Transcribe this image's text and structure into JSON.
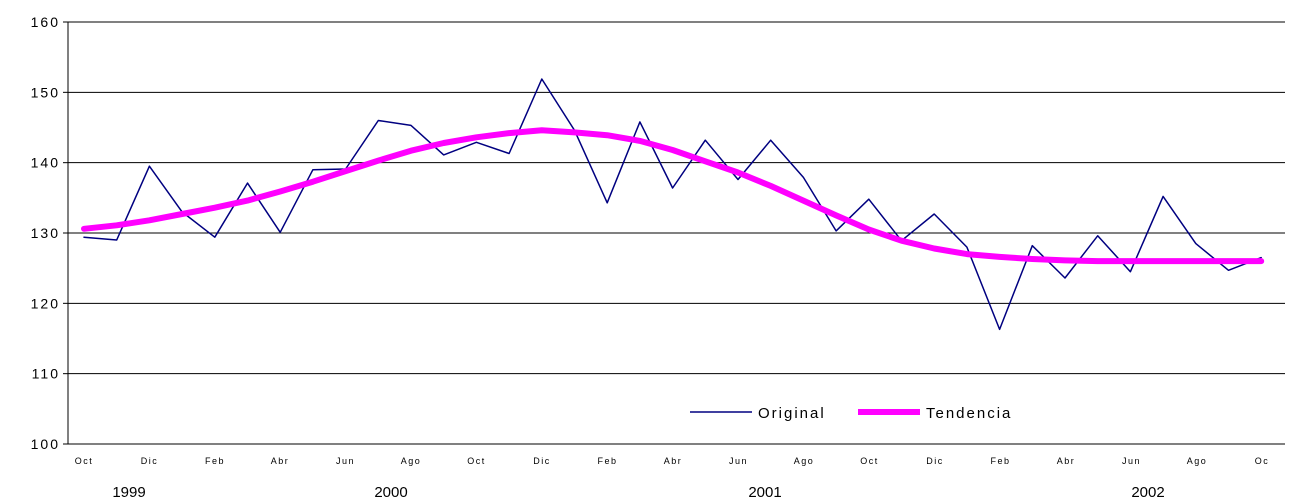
{
  "chart_data": {
    "type": "line",
    "ylim": [
      100,
      160
    ],
    "yticks": [
      "100",
      "110",
      "120",
      "130",
      "140",
      "150",
      "160"
    ],
    "grid": true,
    "legend_position": "bottom-right",
    "x_tick_labels": [
      "Oct",
      "Dic",
      "Feb",
      "Abr",
      "Jun",
      "Ago",
      "Oct",
      "Dic",
      "Feb",
      "Abr",
      "Jun",
      "Ago",
      "Oct",
      "Dic",
      "Feb",
      "Abr",
      "Jun",
      "Ago",
      "Oc"
    ],
    "year_labels": [
      "1999",
      "2000",
      "2001",
      "2002"
    ],
    "x": [
      "1999-10",
      "1999-11",
      "1999-12",
      "2000-01",
      "2000-02",
      "2000-03",
      "2000-04",
      "2000-05",
      "2000-06",
      "2000-07",
      "2000-08",
      "2000-09",
      "2000-10",
      "2000-11",
      "2000-12",
      "2001-01",
      "2001-02",
      "2001-03",
      "2001-04",
      "2001-05",
      "2001-06",
      "2001-07",
      "2001-08",
      "2001-09",
      "2001-10",
      "2001-11",
      "2001-12",
      "2002-01",
      "2002-02",
      "2002-03",
      "2002-04",
      "2002-05",
      "2002-06",
      "2002-07",
      "2002-08",
      "2002-09",
      "2002-10"
    ],
    "series": [
      {
        "name": "Original",
        "color": "#000080",
        "values": [
          129.4,
          129.0,
          139.5,
          133.0,
          129.4,
          137.1,
          130.1,
          139.0,
          139.1,
          146.0,
          145.3,
          141.1,
          142.9,
          141.3,
          151.9,
          144.6,
          134.3,
          145.8,
          136.4,
          143.2,
          137.6,
          143.2,
          137.9,
          130.3,
          134.8,
          128.9,
          132.7,
          128.0,
          116.3,
          128.2,
          123.6,
          129.6,
          124.5,
          135.2,
          128.5,
          124.7,
          126.5
        ]
      },
      {
        "name": "Tendencia",
        "color": "#ff00ff",
        "values": [
          130.6,
          131.1,
          131.8,
          132.7,
          133.6,
          134.6,
          135.9,
          137.3,
          138.8,
          140.3,
          141.7,
          142.8,
          143.6,
          144.2,
          144.6,
          144.3,
          143.9,
          143.1,
          141.8,
          140.2,
          138.6,
          136.7,
          134.6,
          132.5,
          130.5,
          128.9,
          127.8,
          127.0,
          126.6,
          126.3,
          126.1,
          126.0,
          126.0,
          126.0,
          126.0,
          126.0,
          126.0
        ]
      }
    ]
  }
}
